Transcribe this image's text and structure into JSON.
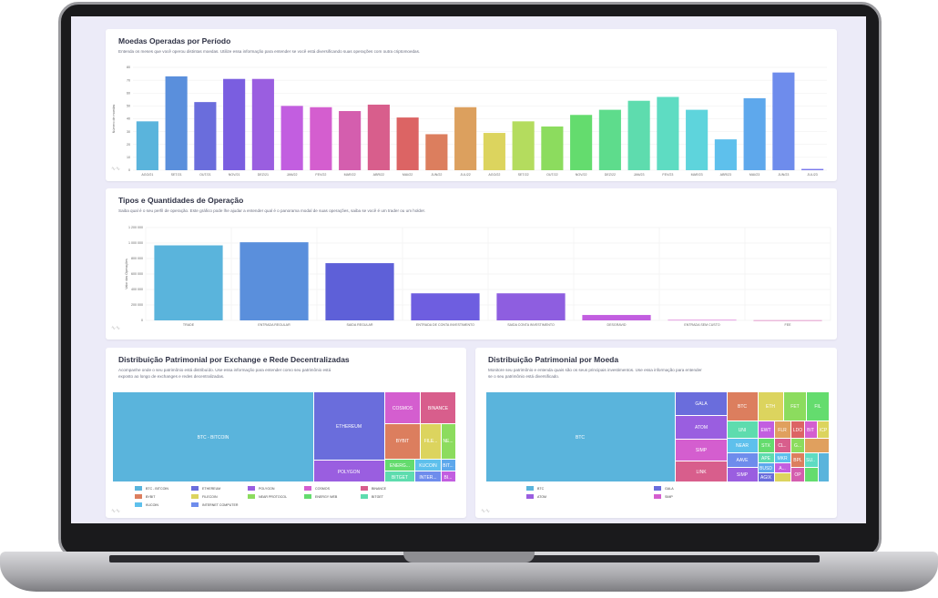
{
  "panel1": {
    "title": "Moedas Operadas por Período",
    "subtitle": "Entenda os meses que você operou distintas moedas. Utilize essa informação para entender se você está diversificando suas operações com outra criptomoedas.",
    "chart_data": {
      "type": "bar",
      "ylabel": "Número de moedas",
      "ylim": [
        0,
        80
      ],
      "yticks": [
        "0",
        "10",
        "20",
        "30",
        "40",
        "50",
        "60",
        "70",
        "80"
      ],
      "categories": [
        "AGO/21",
        "SET/21",
        "OUT/21",
        "NOV/21",
        "DEZ/21",
        "JAN/22",
        "FEV/22",
        "MAR/22",
        "ABR/22",
        "MAI/22",
        "JUN/22",
        "JUL/22",
        "AGO/22",
        "SET/22",
        "OUT/22",
        "NOV/22",
        "DEZ/22",
        "JAN/23",
        "FEV/23",
        "MAR/23",
        "ABR/23",
        "MAI/23",
        "JUN/23",
        "JUL/23"
      ],
      "values": [
        38,
        73,
        53,
        71,
        71,
        50,
        49,
        46,
        51,
        41,
        28,
        49,
        29,
        38,
        34,
        43,
        47,
        54,
        57,
        47,
        24,
        56,
        76,
        1
      ],
      "colors": [
        "#5ab4dc",
        "#5a8fdc",
        "#6a6ddc",
        "#7a5ee0",
        "#9a5ee0",
        "#c25ee0",
        "#d45ecf",
        "#d45eae",
        "#d85e8c",
        "#dc6464",
        "#dc7e5e",
        "#dca05e",
        "#dcd45e",
        "#b4dc5e",
        "#8cdc5e",
        "#64dc6e",
        "#5edc8c",
        "#5edcae",
        "#5edcc2",
        "#5ed4dc",
        "#5ec0ec",
        "#5ea8ec",
        "#6e8cec",
        "#7a78ec"
      ]
    }
  },
  "panel2": {
    "title": "Tipos e Quantidades de Operação",
    "subtitle": "Saiba qual é o seu perfil de operação. Este gráfico pode lhe ajudar a entender qual é o panorama modal de suas operações, saiba se você é um trader ou um holder.",
    "chart_data": {
      "type": "bar",
      "ylabel": "Valor das Operações",
      "ylim": [
        0,
        1200000
      ],
      "yticks": [
        "0",
        "200 000",
        "400 000",
        "600 000",
        "800 000",
        "1 000 000",
        "1 200 000"
      ],
      "categories": [
        "TRADE",
        "ENTRADA REGULAR",
        "SAIDA REGULAR",
        "ENTRADA DE CONTA INVESTIMENTO",
        "SAIDA CONTA INVESTIMENTO",
        "DESGRAVID",
        "ENTRADA SEM CUSTO",
        "FEE"
      ],
      "values": [
        970000,
        1010000,
        740000,
        350000,
        350000,
        70000,
        6000,
        2000
      ],
      "colors": [
        "#5ab4dc",
        "#5a8fdc",
        "#5e60d8",
        "#6e5ee0",
        "#8e5ee0",
        "#c25ee0",
        "#d45ecf",
        "#d45eae"
      ]
    }
  },
  "panel3": {
    "title": "Distribuição Patrimonial por Exchange e Rede Decentralizadas",
    "subtitle": "Acompanhe onde o seu patrimônio está distribuído. Use essa informação para entender como seu patrimônio está exposto ao longo de exchanges e redes decentralizadas.",
    "chart_data": {
      "type": "treemap",
      "labels": [
        "BTC - BITCOIN",
        "ETHEREUM",
        "POLYGON",
        "COSMOS",
        "BINANCE",
        "BYBIT",
        "FILE...",
        "NE...",
        "ENERG...",
        "KUCOIN",
        "BIT...",
        "BITGET",
        "INTER...",
        "BI..."
      ],
      "legend": [
        "BTC - BITCOIN",
        "ETHEREUM",
        "POLYGON",
        "COSMOS",
        "BINANCE",
        "BYBIT",
        "FILECOIN",
        "NEAR PROTOCOL",
        "ENERGY WEB",
        "BITGET",
        "KUCOIN",
        "INTERNET COMPUTER"
      ],
      "legend_colors": [
        "#5ab4dc",
        "#6a6ddc",
        "#9a5ee0",
        "#d45ecf",
        "#d85e8c",
        "#dc7e5e",
        "#dcd45e",
        "#8cdc5e",
        "#64dc6e",
        "#5edcae",
        "#5ec0ec",
        "#6e8cec"
      ]
    }
  },
  "panel4": {
    "title": "Distribuição Patrimonial por Moeda",
    "subtitle": "Monitore seu patrimônio e entenda quais são os seus principais investimentos. Use essa informação para entender se o seu patrimônio está diversificado.",
    "chart_data": {
      "type": "treemap",
      "labels": [
        "BTC",
        "GALA",
        "ATOM",
        "SIMP",
        "LINK",
        "BTC",
        "ETH",
        "FET",
        "FIL",
        "UNI",
        "EWT",
        "FLR",
        "LDO",
        "BIT",
        "ICP",
        "NEAR",
        "STX",
        "CL..",
        "G...",
        "AAVE",
        "APE",
        "MKR",
        "SIMP",
        "BUSD",
        "AGIX",
        "A...",
        "BPL",
        "SU..",
        "OP"
      ],
      "legend": [
        "BTC",
        "GALA",
        "ATOM",
        "SIMP"
      ],
      "legend_colors": [
        "#5ab4dc",
        "#6a6ddc",
        "#9a5ee0",
        "#d45ecf"
      ]
    }
  }
}
